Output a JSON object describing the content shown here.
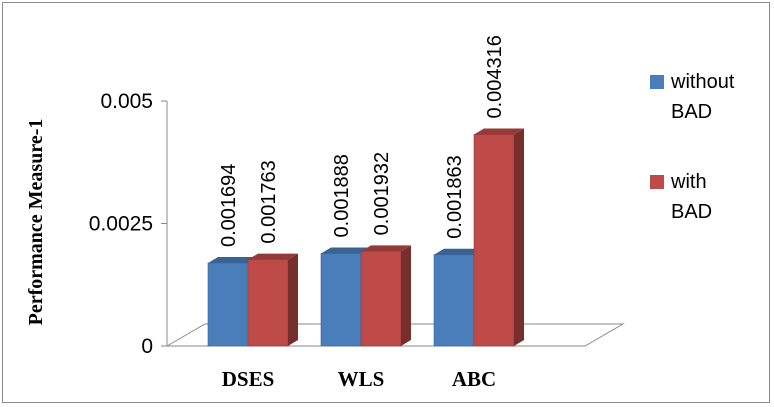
{
  "chart_data": {
    "type": "bar",
    "title": "",
    "xlabel": "",
    "ylabel": "Performance Measure-1",
    "categories": [
      "DSES",
      "WLS",
      "ABC"
    ],
    "series": [
      {
        "name": "without BAD",
        "name_lines": [
          "without",
          "BAD"
        ],
        "values": [
          0.001694,
          0.001888,
          0.001863
        ],
        "labels": [
          "0.001694",
          "0.001888",
          "0.001863"
        ],
        "color": "#4a7ebb"
      },
      {
        "name": "with BAD",
        "name_lines": [
          "with",
          "BAD"
        ],
        "values": [
          0.001763,
          0.001932,
          0.004316
        ],
        "labels": [
          "0.001763",
          "0.001932",
          "0.004316"
        ],
        "color": "#be4b48"
      }
    ],
    "yticks": [
      "0",
      "0.0025",
      "0.005"
    ],
    "ytick_values": [
      0,
      0.0025,
      0.005
    ],
    "ylim": [
      0,
      0.005
    ],
    "grid": false,
    "legend": "right",
    "style": "3d-column"
  }
}
